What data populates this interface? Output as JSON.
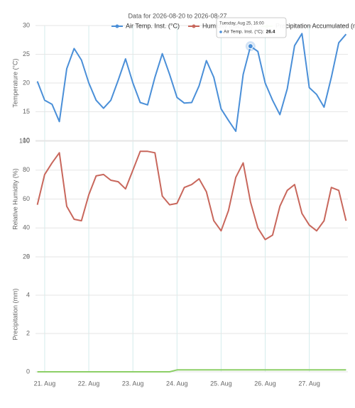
{
  "chart_data": {
    "type": "line",
    "title": "Data for 2026-08-20 to 2026-08-27",
    "x": [
      "2026-08-20T20:00",
      "2026-08-21T00:00",
      "2026-08-21T04:00",
      "2026-08-21T08:00",
      "2026-08-21T12:00",
      "2026-08-21T16:00",
      "2026-08-21T20:00",
      "2026-08-22T00:00",
      "2026-08-22T04:00",
      "2026-08-22T08:00",
      "2026-08-22T12:00",
      "2026-08-22T16:00",
      "2026-08-22T20:00",
      "2026-08-23T00:00",
      "2026-08-23T04:00",
      "2026-08-23T08:00",
      "2026-08-23T12:00",
      "2026-08-23T16:00",
      "2026-08-23T20:00",
      "2026-08-24T00:00",
      "2026-08-24T04:00",
      "2026-08-24T08:00",
      "2026-08-24T12:00",
      "2026-08-24T16:00",
      "2026-08-24T20:00",
      "2026-08-25T00:00",
      "2026-08-25T04:00",
      "2026-08-25T08:00",
      "2026-08-25T12:00",
      "2026-08-25T16:00",
      "2026-08-25T20:00",
      "2026-08-26T00:00",
      "2026-08-26T04:00",
      "2026-08-26T08:00",
      "2026-08-26T12:00",
      "2026-08-26T16:00",
      "2026-08-26T20:00",
      "2026-08-27T00:00",
      "2026-08-27T04:00",
      "2026-08-27T08:00",
      "2026-08-27T12:00",
      "2026-08-27T16:00",
      "2026-08-27T20:00"
    ],
    "xlim": [
      "2026-08-20T19:00",
      "2026-08-27T21:00"
    ],
    "xticks": [
      {
        "value": "2026-08-21T00:00",
        "label": "21. Aug"
      },
      {
        "value": "2026-08-22T00:00",
        "label": "22. Aug"
      },
      {
        "value": "2026-08-23T00:00",
        "label": "23. Aug"
      },
      {
        "value": "2026-08-24T00:00",
        "label": "24. Aug"
      },
      {
        "value": "2026-08-25T00:00",
        "label": "25. Aug"
      },
      {
        "value": "2026-08-26T00:00",
        "label": "26. Aug"
      },
      {
        "value": "2026-08-27T00:00",
        "label": "27. Aug"
      }
    ],
    "grid": true,
    "panels": [
      {
        "ylabel": "Temperature (°C)",
        "ylim": [
          10,
          30
        ],
        "yticks": [
          10,
          15,
          20,
          25,
          30
        ],
        "series": [
          {
            "name": "Air Temp. Inst. (°C)",
            "color": "#4a8fd8",
            "values": [
              20.3,
              17,
              16.3,
              13.3,
              22.5,
              26,
              24,
              20,
              17,
              15.6,
              17,
              20.5,
              24.2,
              20,
              16.6,
              16.2,
              21,
              25.1,
              21.5,
              17.5,
              16.5,
              16.6,
              19.5,
              23.9,
              21,
              15.5,
              13.5,
              11.6,
              21.5,
              26.4,
              25.5,
              20,
              17,
              14.5,
              19,
              26.5,
              28.6,
              19.2,
              18,
              15.8,
              21,
              27,
              28.5
            ]
          }
        ]
      },
      {
        "ylabel": "Relative Humidity (%)",
        "ylim": [
          20,
          100
        ],
        "yticks": [
          20,
          40,
          60,
          80,
          100
        ],
        "series": [
          {
            "name": "Humidity Inst. (%)",
            "color": "#c8675c",
            "values": [
              56,
              77,
              85,
              92,
              55,
              46,
              45,
              63,
              76,
              77,
              73,
              72,
              67,
              80,
              93,
              93,
              92,
              62,
              56,
              57,
              68,
              70,
              74,
              65,
              45,
              38,
              52,
              75,
              85,
              58,
              40,
              32,
              35,
              55,
              66,
              70,
              50,
              42,
              38,
              45,
              68,
              66,
              45
            ]
          }
        ]
      },
      {
        "ylabel": "Precipitation (mm)",
        "ylim": [
          0,
          6
        ],
        "yticks": [
          0,
          2,
          4,
          6
        ],
        "series": [
          {
            "name": "Precipitation Accumulated (mm)",
            "color": "#8ccf66",
            "values": [
              0,
              0,
              0,
              0,
              0,
              0,
              0,
              0,
              0,
              0,
              0,
              0,
              0,
              0,
              0,
              0,
              0,
              0,
              0,
              0.1,
              0.1,
              0.1,
              0.1,
              0.1,
              0.1,
              0.1,
              0.1,
              0.1,
              0.1,
              0.1,
              0.1,
              0.1,
              0.1,
              0.1,
              0.1,
              0.1,
              0.1,
              0.1,
              0.1,
              0.1,
              0.1,
              0.1,
              0.1
            ]
          }
        ]
      }
    ],
    "tooltip": {
      "title": "Tuesday, Aug 25, 16:00",
      "label": "Air Temp. Inst. (°C):",
      "value": 26.4
    }
  }
}
